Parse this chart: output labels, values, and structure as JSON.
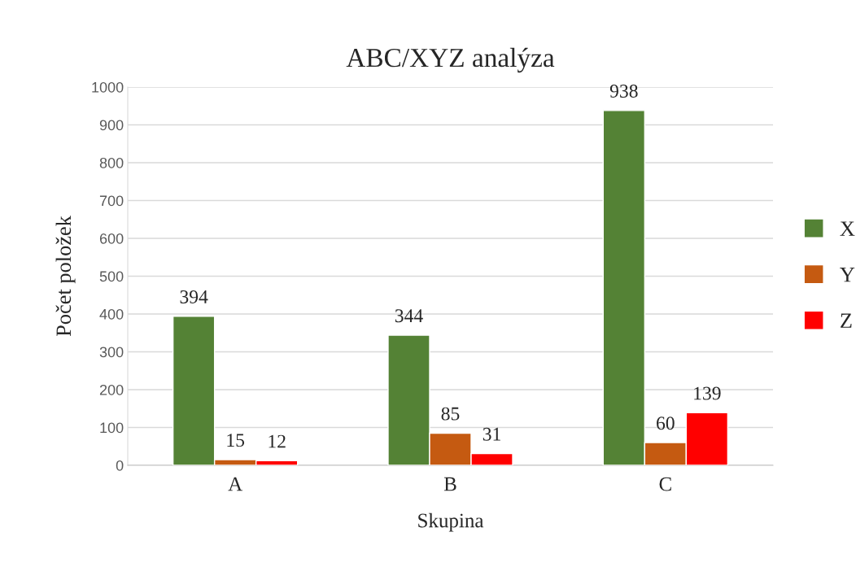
{
  "chart_data": {
    "type": "bar",
    "title": "ABC/XYZ analýza",
    "xlabel": "Skupina",
    "ylabel": "Počet položek",
    "categories": [
      "A",
      "B",
      "C"
    ],
    "series": [
      {
        "name": "X",
        "color": "#548235",
        "values": [
          394,
          344,
          938
        ]
      },
      {
        "name": "Y",
        "color": "#c55a11",
        "values": [
          15,
          85,
          60
        ]
      },
      {
        "name": "Z",
        "color": "#ff0000",
        "values": [
          12,
          31,
          139
        ]
      }
    ],
    "ylim": [
      0,
      1000
    ],
    "yticks": [
      0,
      100,
      200,
      300,
      400,
      500,
      600,
      700,
      800,
      900,
      1000
    ],
    "grid": "y",
    "legend": "right",
    "data_labels": true
  }
}
